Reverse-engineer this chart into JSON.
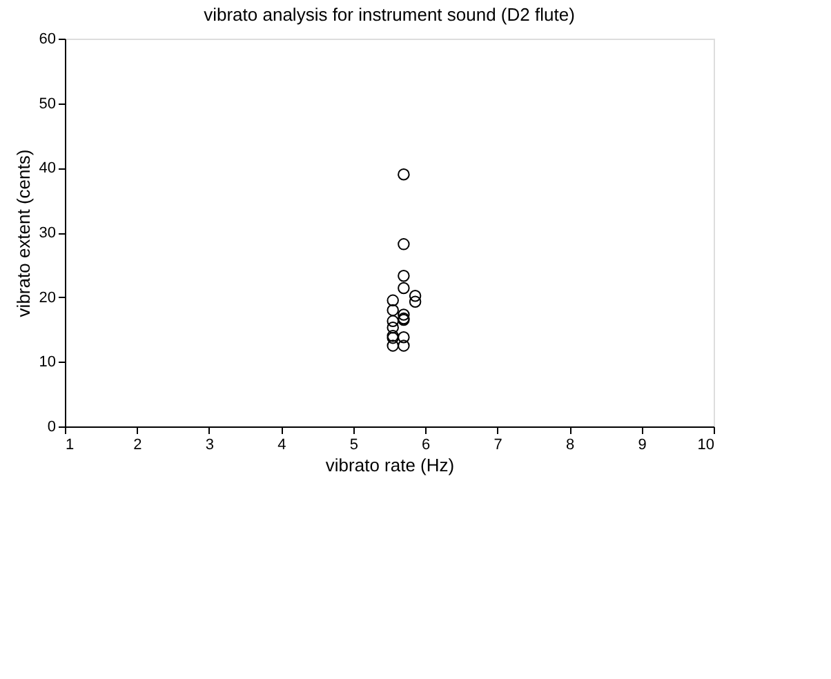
{
  "chart_data": {
    "type": "scatter",
    "title": "vibrato analysis for instrument sound (D2 flute)",
    "xlabel": "vibrato rate (Hz)",
    "ylabel": "vibrato extent (cents)",
    "x": [
      5.7,
      5.7,
      5.7,
      5.7,
      5.86,
      5.86,
      5.55,
      5.55,
      5.7,
      5.7,
      5.7,
      5.55,
      5.55,
      5.55,
      5.55,
      5.7,
      5.55,
      5.7
    ],
    "values": [
      39,
      28.2,
      23.3,
      21.4,
      20.2,
      19.3,
      19.5,
      18,
      17.3,
      16.7,
      16.5,
      16.3,
      15.3,
      14,
      13.7,
      13.8,
      12.5,
      12.5
    ],
    "color": "#000000",
    "marker": "circle",
    "grid": false,
    "xlim": [
      1,
      10
    ],
    "xticks": [
      1,
      2,
      3,
      4,
      5,
      6,
      7,
      8,
      9,
      10
    ],
    "ylim": [
      0,
      60
    ],
    "yticks": [
      0,
      10,
      20,
      30,
      40,
      50,
      60
    ]
  }
}
